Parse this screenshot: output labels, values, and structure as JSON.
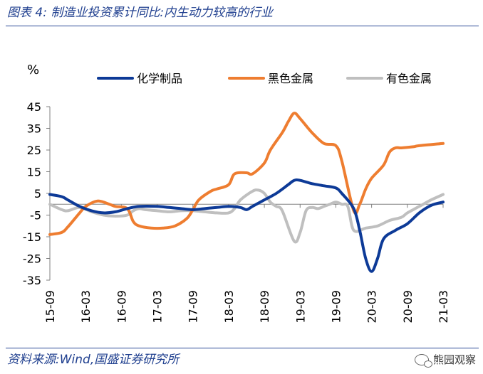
{
  "header": {
    "title": "图表 4:  制造业投资累计同比:内生动力较高的行业"
  },
  "footer": {
    "source": "资料来源:Wind,国盛证券研究所",
    "watermark": "熊园观察"
  },
  "colors": {
    "series": [
      "#0d3a97",
      "#ee7d30",
      "#bfbfbf"
    ],
    "axis": "#808080",
    "text": "#000000"
  },
  "chart_data": {
    "type": "line",
    "ylabel": "%",
    "ylim": [
      -35,
      45
    ],
    "yticks": [
      45,
      35,
      25,
      15,
      5,
      -5,
      -15,
      -25,
      -35
    ],
    "xlim": [
      0,
      66
    ],
    "xticks": [
      {
        "label": "15-09",
        "x": 0
      },
      {
        "label": "16-03",
        "x": 6
      },
      {
        "label": "16-09",
        "x": 12
      },
      {
        "label": "17-03",
        "x": 18
      },
      {
        "label": "17-09",
        "x": 24
      },
      {
        "label": "18-03",
        "x": 30
      },
      {
        "label": "18-09",
        "x": 36
      },
      {
        "label": "19-03",
        "x": 42
      },
      {
        "label": "19-09",
        "x": 48
      },
      {
        "label": "20-03",
        "x": 54
      },
      {
        "label": "20-09",
        "x": 60
      },
      {
        "label": "21-03",
        "x": 66
      }
    ],
    "baseline": 0,
    "legend_position": "top",
    "series": [
      {
        "name": "化学制品",
        "color": "#0d3a97",
        "points": [
          [
            0,
            4.5
          ],
          [
            2,
            3.5
          ],
          [
            3,
            2
          ],
          [
            5,
            -1
          ],
          [
            7,
            -3
          ],
          [
            9,
            -4
          ],
          [
            11,
            -3.5
          ],
          [
            13,
            -2
          ],
          [
            15,
            -1
          ],
          [
            18,
            -1
          ],
          [
            20,
            -1.5
          ],
          [
            22,
            -2
          ],
          [
            24,
            -2.5
          ],
          [
            26,
            -2
          ],
          [
            28,
            -1.5
          ],
          [
            30,
            -1
          ],
          [
            32,
            -1.5
          ],
          [
            33,
            -2.5
          ],
          [
            34,
            -1
          ],
          [
            36,
            2
          ],
          [
            38,
            5
          ],
          [
            40,
            9
          ],
          [
            41,
            11
          ],
          [
            42,
            11
          ],
          [
            44,
            9.5
          ],
          [
            46,
            8.5
          ],
          [
            48,
            7.5
          ],
          [
            49,
            5
          ],
          [
            51,
            -2
          ],
          [
            52,
            -12
          ],
          [
            53,
            -25
          ],
          [
            54,
            -31
          ],
          [
            55,
            -25
          ],
          [
            56,
            -16
          ],
          [
            58,
            -12
          ],
          [
            60,
            -9
          ],
          [
            62,
            -4
          ],
          [
            64,
            -0.5
          ],
          [
            66,
            1
          ]
        ]
      },
      {
        "name": "黑色金属",
        "color": "#ee7d30",
        "points": [
          [
            0,
            -14
          ],
          [
            2,
            -13
          ],
          [
            3,
            -10.5
          ],
          [
            5,
            -4
          ],
          [
            6,
            -1
          ],
          [
            8,
            1.5
          ],
          [
            10,
            0
          ],
          [
            11,
            -1
          ],
          [
            13,
            -2
          ],
          [
            14,
            -8
          ],
          [
            15,
            -10
          ],
          [
            17,
            -11
          ],
          [
            19,
            -11
          ],
          [
            21,
            -10
          ],
          [
            23,
            -6.5
          ],
          [
            24,
            -2.5
          ],
          [
            25,
            2
          ],
          [
            27,
            6
          ],
          [
            28,
            7
          ],
          [
            30,
            9
          ],
          [
            31,
            14
          ],
          [
            33,
            14.5
          ],
          [
            34,
            14
          ],
          [
            36,
            19
          ],
          [
            37,
            25
          ],
          [
            39,
            33
          ],
          [
            40,
            38
          ],
          [
            41,
            42
          ],
          [
            42,
            39.5
          ],
          [
            44,
            33
          ],
          [
            46,
            28
          ],
          [
            48,
            27
          ],
          [
            49,
            20
          ],
          [
            51,
            -3
          ],
          [
            52,
            0
          ],
          [
            53,
            7
          ],
          [
            54,
            12
          ],
          [
            56,
            18
          ],
          [
            57,
            24
          ],
          [
            58,
            26
          ],
          [
            59,
            26
          ],
          [
            61,
            26.5
          ],
          [
            62,
            27
          ],
          [
            66,
            28
          ]
        ]
      },
      {
        "name": "有色金属",
        "color": "#bfbfbf",
        "points": [
          [
            0,
            0
          ],
          [
            2,
            -2.5
          ],
          [
            3,
            -3
          ],
          [
            5,
            -1.5
          ],
          [
            7,
            -3.5
          ],
          [
            9,
            -5
          ],
          [
            11,
            -5.5
          ],
          [
            13,
            -5
          ],
          [
            14,
            -3
          ],
          [
            15,
            -2
          ],
          [
            16,
            -2.5
          ],
          [
            18,
            -3
          ],
          [
            20,
            -3.5
          ],
          [
            22,
            -3
          ],
          [
            24,
            -3
          ],
          [
            26,
            -3.5
          ],
          [
            28,
            -4
          ],
          [
            30,
            -4
          ],
          [
            31,
            -2
          ],
          [
            32,
            2
          ],
          [
            34,
            6
          ],
          [
            35,
            6.5
          ],
          [
            36,
            5
          ],
          [
            37,
            1
          ],
          [
            38,
            -1
          ],
          [
            39,
            -3
          ],
          [
            41,
            -17
          ],
          [
            42,
            -13
          ],
          [
            43,
            -3
          ],
          [
            44,
            -1.5
          ],
          [
            45,
            -2
          ],
          [
            46,
            -1
          ],
          [
            47,
            0
          ],
          [
            48,
            1
          ],
          [
            49,
            0
          ],
          [
            50,
            -1
          ],
          [
            51,
            -12
          ],
          [
            53,
            -11
          ],
          [
            55,
            -10
          ],
          [
            57,
            -7.5
          ],
          [
            59,
            -6
          ],
          [
            60,
            -4
          ],
          [
            62,
            -1
          ],
          [
            64,
            2
          ],
          [
            66,
            4.5
          ]
        ]
      }
    ]
  }
}
